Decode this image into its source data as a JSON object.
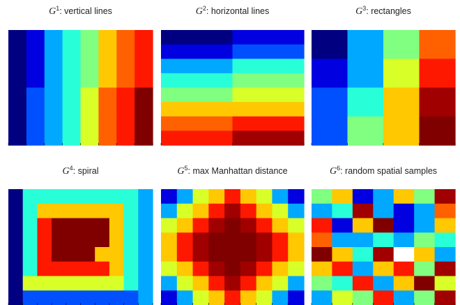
{
  "palette": {
    "a": "#000080",
    "b": "#0000e0",
    "c": "#0050ff",
    "d": "#00a8ff",
    "e": "#28ffd8",
    "f": "#80ff80",
    "g": "#d8ff28",
    "h": "#ffc800",
    "i": "#ff6000",
    "j": "#ff1800",
    "k": "#a00000",
    "l": "#800000"
  },
  "panels": [
    {
      "symbol": "G",
      "superscript": "1",
      "caption": ": vertical lines",
      "grid": [
        "abdefhij",
        "abdefhij",
        "acdegijl",
        "acdegijl"
      ]
    },
    {
      "symbol": "G",
      "superscript": "2",
      "caption": ": horizontal lines",
      "grid": [
        "ab",
        "bc",
        "de",
        "ef",
        "fg",
        "hh",
        "ij",
        "jk"
      ]
    },
    {
      "symbol": "G",
      "superscript": "3",
      "caption": ": rectangles",
      "grid": [
        "adfi",
        "bdgj",
        "cehk",
        "cfhl"
      ]
    },
    {
      "symbol": "G",
      "superscript": "4",
      "caption": ": spiral",
      "grid": [
        "aeeeeeeeed",
        "aehhhhhhed",
        "aejllllhed",
        "aejllllhed",
        "aejlllhhed",
        "aejjjjjhed",
        "aggggggged",
        "accccccccd"
      ]
    },
    {
      "symbol": "G",
      "superscript": "5",
      "caption": ": max Manhattan distance",
      "grid": [
        "bdghjhgdb",
        "dghjkjhgd",
        "ghjklkjhg",
        "hjklllkjh",
        "hjklllkjh",
        "ghjklkjhg",
        "dghjkjhgd",
        "bdghjhgdb"
      ]
    },
    {
      "symbol": "G",
      "superscript": "6",
      "caption": ": random spatial samples",
      "grid": [
        "fhbdhfk",
        "dekdbdi",
        "jbhlbdh",
        "iddedfe",
        "lheknhd",
        "hjdhjfk",
        "fejdhlg",
        "dgfjdfk"
      ]
    }
  ]
}
